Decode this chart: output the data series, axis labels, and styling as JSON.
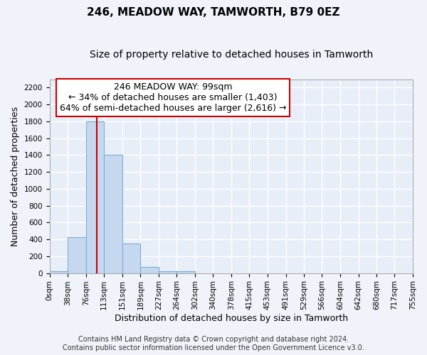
{
  "title": "246, MEADOW WAY, TAMWORTH, B79 0EZ",
  "subtitle": "Size of property relative to detached houses in Tamworth",
  "xlabel": "Distribution of detached houses by size in Tamworth",
  "ylabel": "Number of detached properties",
  "bar_edges": [
    0,
    38,
    76,
    113,
    151,
    189,
    227,
    264,
    302,
    340,
    378,
    415,
    453,
    491,
    529,
    566,
    604,
    642,
    680,
    717,
    755
  ],
  "bar_heights": [
    20,
    425,
    1800,
    1400,
    350,
    75,
    25,
    25,
    0,
    0,
    0,
    0,
    0,
    0,
    0,
    0,
    0,
    0,
    0,
    0
  ],
  "bar_color": "#c5d8f0",
  "bar_edgecolor": "#7aaed4",
  "property_line_x": 99,
  "property_line_color": "#cc0000",
  "ylim": [
    0,
    2300
  ],
  "yticks": [
    0,
    200,
    400,
    600,
    800,
    1000,
    1200,
    1400,
    1600,
    1800,
    2000,
    2200
  ],
  "xtick_labels": [
    "0sqm",
    "38sqm",
    "76sqm",
    "113sqm",
    "151sqm",
    "189sqm",
    "227sqm",
    "264sqm",
    "302sqm",
    "340sqm",
    "378sqm",
    "415sqm",
    "453sqm",
    "491sqm",
    "529sqm",
    "566sqm",
    "604sqm",
    "642sqm",
    "680sqm",
    "717sqm",
    "755sqm"
  ],
  "annotation_title": "246 MEADOW WAY: 99sqm",
  "annotation_line1": "← 34% of detached houses are smaller (1,403)",
  "annotation_line2": "64% of semi-detached houses are larger (2,616) →",
  "annotation_box_color": "#ffffff",
  "annotation_box_edgecolor": "#cc0000",
  "footer_line1": "Contains HM Land Registry data © Crown copyright and database right 2024.",
  "footer_line2": "Contains public sector information licensed under the Open Government Licence v3.0.",
  "background_color": "#f0f4fa",
  "plot_background": "#e8eef8",
  "grid_color": "#ffffff",
  "title_fontsize": 11,
  "subtitle_fontsize": 10,
  "axis_label_fontsize": 9,
  "tick_fontsize": 7.5,
  "annotation_fontsize": 9,
  "footer_fontsize": 7
}
